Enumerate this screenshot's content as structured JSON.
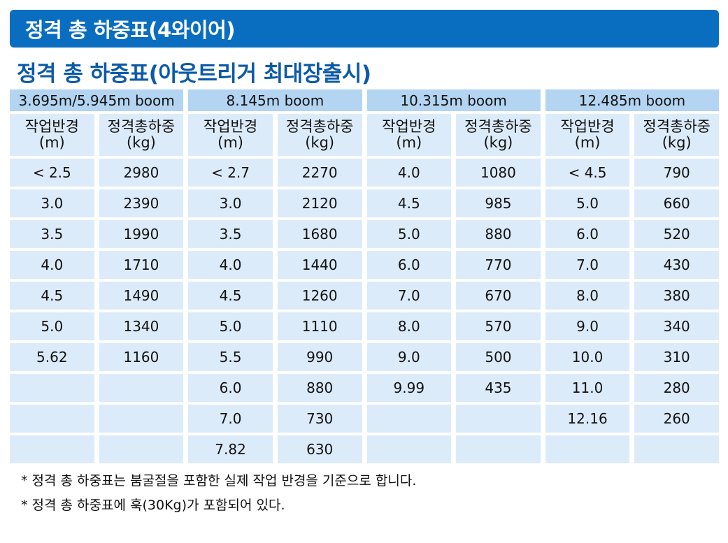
{
  "header": {
    "title": "정격 총 하중표(4와이어)"
  },
  "subtitle": "정격 총 하중표(아웃트리거 최대장출시)",
  "table": {
    "booms": [
      "3.695m/5.945m boom",
      "8.145m boom",
      "10.315m boom",
      "12.485m boom"
    ],
    "col_radius": {
      "line1": "작업반경",
      "line2": "(m)"
    },
    "col_load": {
      "line1": "정격총하중",
      "line2": "(kg)"
    },
    "rows": [
      [
        "< 2.5",
        "2980",
        "< 2.7",
        "2270",
        "4.0",
        "1080",
        "< 4.5",
        "790"
      ],
      [
        "3.0",
        "2390",
        "3.0",
        "2120",
        "4.5",
        "985",
        "5.0",
        "660"
      ],
      [
        "3.5",
        "1990",
        "3.5",
        "1680",
        "5.0",
        "880",
        "6.0",
        "520"
      ],
      [
        "4.0",
        "1710",
        "4.0",
        "1440",
        "6.0",
        "770",
        "7.0",
        "430"
      ],
      [
        "4.5",
        "1490",
        "4.5",
        "1260",
        "7.0",
        "670",
        "8.0",
        "380"
      ],
      [
        "5.0",
        "1340",
        "5.0",
        "1110",
        "8.0",
        "570",
        "9.0",
        "340"
      ],
      [
        "5.62",
        "1160",
        "5.5",
        "990",
        "9.0",
        "500",
        "10.0",
        "310"
      ],
      [
        "",
        "",
        "6.0",
        "880",
        "9.99",
        "435",
        "11.0",
        "280"
      ],
      [
        "",
        "",
        "7.0",
        "730",
        "",
        "",
        "12.16",
        "260"
      ],
      [
        "",
        "",
        "7.82",
        "630",
        "",
        "",
        "",
        ""
      ]
    ]
  },
  "notes": [
    "* 정격 총 하중표는 붐굴절을 포함한 실제 작업 반경을 기준으로 합니다.",
    "* 정격 총 하중표에 훅(30Kg)가 포함되어 있다."
  ],
  "colors": {
    "header_bg": "#0a6ec0",
    "subtitle": "#0b5aa8",
    "boom_header_bg": "#b3d5f2",
    "cell_bg": "#dcebf9"
  }
}
